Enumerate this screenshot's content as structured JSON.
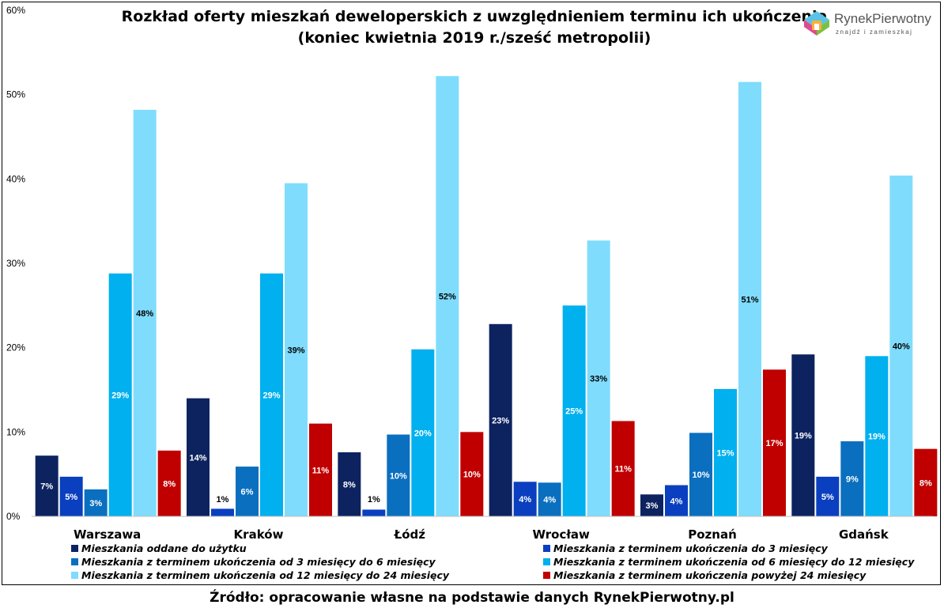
{
  "chart_data": {
    "type": "bar",
    "title": "Rozkład oferty mieszkań deweloperskich z uwzględnieniem terminu ich ukończenia",
    "subtitle": "(koniec kwietnia 2019 r./sześć metropolii)",
    "categories": [
      "Warszawa",
      "Kraków",
      "Łódź",
      "Wrocław",
      "Poznań",
      "Gdańsk"
    ],
    "ylim": [
      0,
      60
    ],
    "yticks": [
      0,
      10,
      20,
      30,
      40,
      50,
      60
    ],
    "ytick_labels": [
      "0%",
      "10%",
      "20%",
      "30%",
      "40%",
      "50%",
      "60%"
    ],
    "grid": false,
    "legend_position": "bottom",
    "series": [
      {
        "name": "Mieszkania oddane do użytku",
        "color": "#0d2360",
        "values": [
          7.2,
          14.0,
          7.6,
          22.8,
          2.6,
          19.2
        ],
        "labels": [
          "7%",
          "14%",
          "8%",
          "23%",
          "3%",
          "19%"
        ]
      },
      {
        "name": "Mieszkania z terminem ukończenia do 3 miesięcy",
        "color": "#0a3fbf",
        "values": [
          4.7,
          0.9,
          0.8,
          4.1,
          3.7,
          4.7
        ],
        "labels": [
          "5%",
          "1%",
          "1%",
          "4%",
          "4%",
          "5%"
        ]
      },
      {
        "name": "Mieszkania z terminem ukończenia od 3 miesięcy do 6 miesięcy",
        "color": "#0a6fbf",
        "values": [
          3.2,
          5.9,
          9.7,
          4.0,
          9.9,
          8.9
        ],
        "labels": [
          "3%",
          "6%",
          "10%",
          "4%",
          "10%",
          "9%"
        ]
      },
      {
        "name": "Mieszkania z terminem ukończenia od 6 miesięcy do 12 miesięcy",
        "color": "#00b0ef",
        "values": [
          28.8,
          28.8,
          19.8,
          25.0,
          15.1,
          19.0
        ],
        "labels": [
          "29%",
          "29%",
          "20%",
          "25%",
          "15%",
          "19%"
        ]
      },
      {
        "name": "Mieszkania z terminem ukończenia od 12 miesięcy do 24 miesięcy",
        "color": "#7fdcfd",
        "values": [
          48.2,
          39.5,
          52.2,
          32.7,
          51.5,
          40.4
        ],
        "labels": [
          "48%",
          "39%",
          "52%",
          "33%",
          "51%",
          "40%"
        ]
      },
      {
        "name": "Mieszkania z terminem ukończenia powyżej 24 miesięcy",
        "color": "#c00000",
        "values": [
          7.8,
          11.0,
          10.0,
          11.3,
          17.4,
          8.0
        ],
        "labels": [
          "8%",
          "11%",
          "10%",
          "11%",
          "17%",
          "8%"
        ]
      }
    ]
  },
  "logo": {
    "brand": "RynekPierwotny",
    "tagline": "znajdź i zamieszkaj"
  },
  "source": "Źródło: opracowanie własne na podstawie danych RynekPierwotny.pl"
}
